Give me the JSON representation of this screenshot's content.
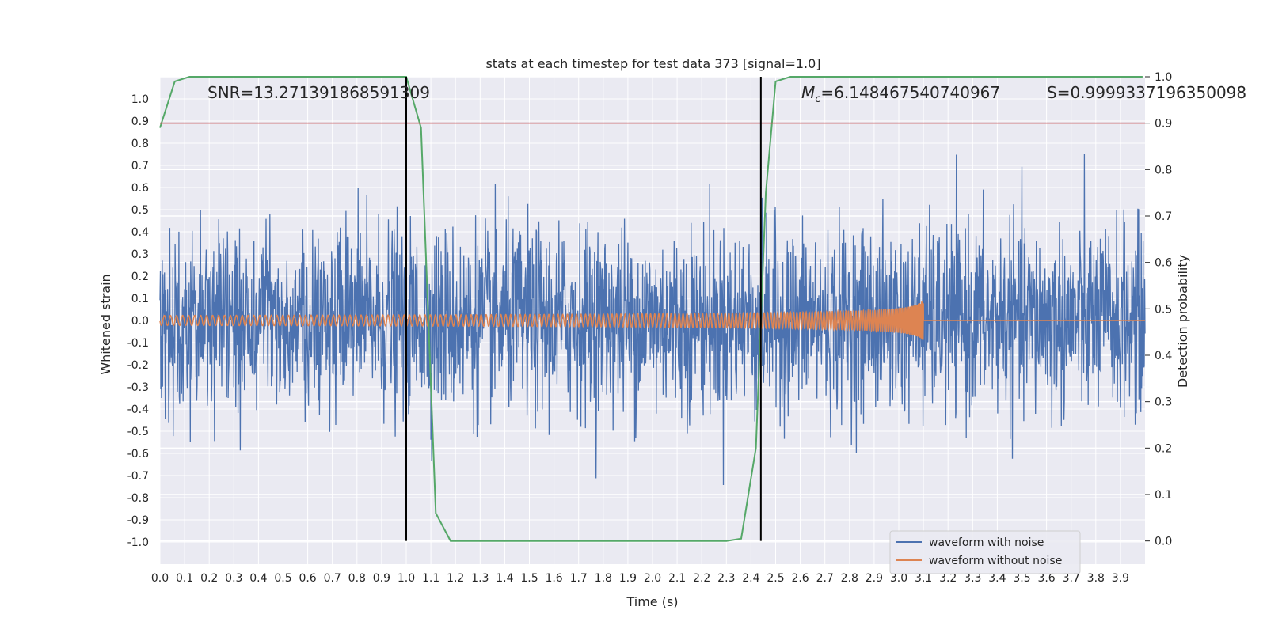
{
  "chart_data": {
    "type": "line",
    "title": "stats at each timestep for test data 373 [signal=1.0]",
    "xlabel": "Time (s)",
    "ylabel": "Whitened strain",
    "ylabel_right": "Detection probability",
    "xlim": [
      0.0,
      4.0
    ],
    "ylim": [
      -1.1,
      1.1
    ],
    "ylim_right": [
      -0.05,
      1.0
    ],
    "x_ticks": [
      "0.0",
      "0.1",
      "0.2",
      "0.3",
      "0.4",
      "0.5",
      "0.6",
      "0.7",
      "0.8",
      "0.9",
      "1.0",
      "1.1",
      "1.2",
      "1.3",
      "1.4",
      "1.5",
      "1.6",
      "1.7",
      "1.8",
      "1.9",
      "2.0",
      "2.1",
      "2.2",
      "2.3",
      "2.4",
      "2.5",
      "2.6",
      "2.7",
      "2.8",
      "2.9",
      "3.0",
      "3.1",
      "3.2",
      "3.3",
      "3.4",
      "3.5",
      "3.6",
      "3.7",
      "3.8",
      "3.9"
    ],
    "y_ticks": [
      "1.0",
      "0.9",
      "0.8",
      "0.7",
      "0.6",
      "0.5",
      "0.4",
      "0.3",
      "0.2",
      "0.1",
      "0.0",
      "-0.1",
      "-0.2",
      "-0.3",
      "-0.4",
      "-0.5",
      "-0.6",
      "-0.7",
      "-0.8",
      "-0.9",
      "-1.0"
    ],
    "y_ticks_right": [
      "1.0",
      "0.9",
      "0.8",
      "0.7",
      "0.6",
      "0.5",
      "0.4",
      "0.3",
      "0.2",
      "0.1",
      "0.0"
    ],
    "annotations": {
      "snr": "SNR=13.271391868591309",
      "mc_symbol": "M",
      "mc_sub": "c",
      "mc_value": "=6.148467540740967",
      "s": "S=0.9999337196350098"
    },
    "threshold": {
      "axis": "right",
      "value": 0.9,
      "color": "#c44e52"
    },
    "vlines": [
      1.0,
      2.44
    ],
    "series": [
      {
        "name": "waveform with noise",
        "color": "#4c72b0",
        "axis": "left"
      },
      {
        "name": "waveform without noise",
        "color": "#dd8452",
        "axis": "left"
      },
      {
        "color": "#55a868",
        "axis": "right",
        "x": [
          0.0,
          0.06,
          0.12,
          0.18,
          0.24,
          0.3,
          0.36,
          0.42,
          0.48,
          0.54,
          0.6,
          0.66,
          0.72,
          0.78,
          0.84,
          0.9,
          0.96,
          1.0,
          1.06,
          1.12,
          1.18,
          1.24,
          1.3,
          1.4,
          1.6,
          1.8,
          2.0,
          2.2,
          2.3,
          2.36,
          2.42,
          2.46,
          2.5,
          2.56,
          2.62,
          2.7,
          2.8,
          2.9,
          3.0,
          3.2,
          3.4,
          3.6,
          3.8,
          3.99
        ],
        "values": [
          0.89,
          0.99,
          1.0,
          1.0,
          1.0,
          1.0,
          1.0,
          1.0,
          1.0,
          1.0,
          1.0,
          1.0,
          1.0,
          1.0,
          1.0,
          1.0,
          1.0,
          1.0,
          0.89,
          0.06,
          0.0,
          0.0,
          0.0,
          0.0,
          0.0,
          0.0,
          0.0,
          0.0,
          0.0,
          0.005,
          0.2,
          0.75,
          0.99,
          1.0,
          1.0,
          1.0,
          1.0,
          1.0,
          1.0,
          1.0,
          1.0,
          1.0,
          1.0,
          1.0
        ]
      }
    ],
    "legend": {
      "placement": "lower-right"
    },
    "grid": true,
    "colors": {
      "background": "#eaeaf2",
      "grid": "#ffffff",
      "vline": "#000000"
    }
  }
}
